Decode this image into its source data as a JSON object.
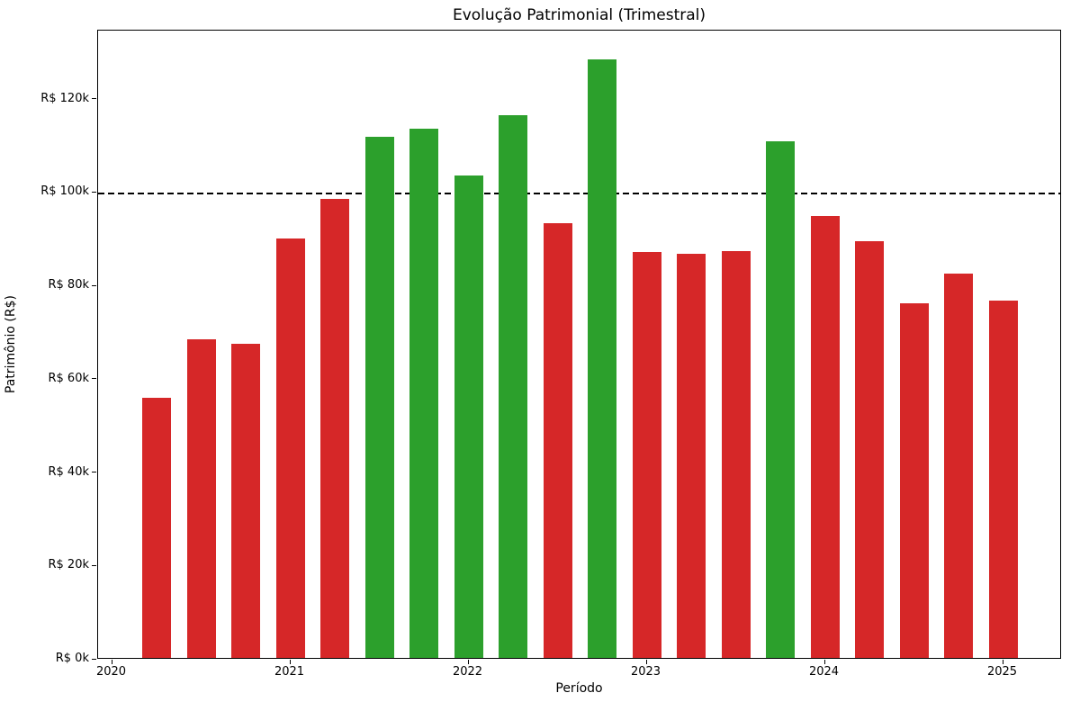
{
  "chart_data": {
    "type": "bar",
    "title": "Evolução Patrimonial (Trimestral)",
    "xlabel": "Período",
    "ylabel": "Patrimônio (R$)",
    "categories": [
      "2020-Q2",
      "2020-Q3",
      "2020-Q4",
      "2021-Q1",
      "2021-Q2",
      "2021-Q3",
      "2021-Q4",
      "2022-Q1",
      "2022-Q2",
      "2022-Q3",
      "2022-Q4",
      "2023-Q1",
      "2023-Q2",
      "2023-Q3",
      "2023-Q4",
      "2024-Q1",
      "2024-Q2",
      "2024-Q3",
      "2024-Q4",
      "2025-Q1"
    ],
    "values": [
      55800,
      68300,
      67200,
      89900,
      98300,
      111700,
      113400,
      103400,
      116300,
      93200,
      128200,
      87000,
      86600,
      87200,
      110600,
      94700,
      89300,
      75900,
      82300,
      76600
    ],
    "bar_colors": [
      "#d62728",
      "#d62728",
      "#d62728",
      "#d62728",
      "#d62728",
      "#2ca02c",
      "#2ca02c",
      "#2ca02c",
      "#2ca02c",
      "#d62728",
      "#2ca02c",
      "#d62728",
      "#d62728",
      "#d62728",
      "#2ca02c",
      "#d62728",
      "#d62728",
      "#d62728",
      "#d62728",
      "#d62728"
    ],
    "color_legend": {
      "above_threshold": "#2ca02c",
      "below_threshold": "#d62728"
    },
    "threshold": {
      "value": 100000,
      "color": "#000000",
      "style": "dashed"
    },
    "x_ticks": [
      {
        "label": "2020",
        "time": 2020
      },
      {
        "label": "2021",
        "time": 2021
      },
      {
        "label": "2022",
        "time": 2022
      },
      {
        "label": "2023",
        "time": 2023
      },
      {
        "label": "2024",
        "time": 2024
      },
      {
        "label": "2025",
        "time": 2025
      }
    ],
    "y_ticks": [
      {
        "label": "R$ 0k",
        "value": 0
      },
      {
        "label": "R$ 20k",
        "value": 20000
      },
      {
        "label": "R$ 40k",
        "value": 40000
      },
      {
        "label": "R$ 60k",
        "value": 60000
      },
      {
        "label": "R$ 80k",
        "value": 80000
      },
      {
        "label": "R$ 100k",
        "value": 100000
      },
      {
        "label": "R$ 120k",
        "value": 120000
      }
    ],
    "ylim": [
      0,
      134750
    ],
    "grid": false,
    "legend": false
  }
}
